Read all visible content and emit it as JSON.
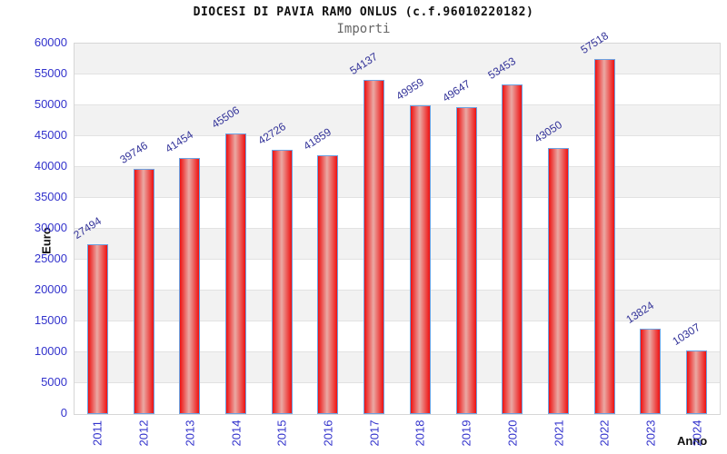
{
  "chart_data": {
    "type": "bar",
    "title": "DIOCESI DI PAVIA RAMO ONLUS (c.f.96010220182)",
    "subtitle": "Importi",
    "xlabel": "Anno",
    "ylabel": "Euro",
    "categories": [
      "2011",
      "2012",
      "2013",
      "2014",
      "2015",
      "2016",
      "2017",
      "2018",
      "2019",
      "2020",
      "2021",
      "2022",
      "2023",
      "2024"
    ],
    "values": [
      27494,
      39746,
      41454,
      45506,
      42726,
      41859,
      54137,
      49959,
      49647,
      53453,
      43050,
      57518,
      13824,
      10307
    ],
    "ylim": [
      0,
      60000
    ],
    "ytick_step": 5000,
    "ytick_labels": [
      "0",
      "5000",
      "10000",
      "15000",
      "20000",
      "25000",
      "30000",
      "35000",
      "40000",
      "45000",
      "50000",
      "55000",
      "60000"
    ],
    "grid": "horizontal-alternating-bands",
    "legend": "none",
    "colors": {
      "bar_red": "#ee1111",
      "bar_highlight": "#eaa9a4",
      "bar_border": "#6ca2e2",
      "tick_blue": "#3232cc",
      "value_label": "#333399",
      "band_gray": "#f2f2f2",
      "background": "#ffffff"
    }
  }
}
